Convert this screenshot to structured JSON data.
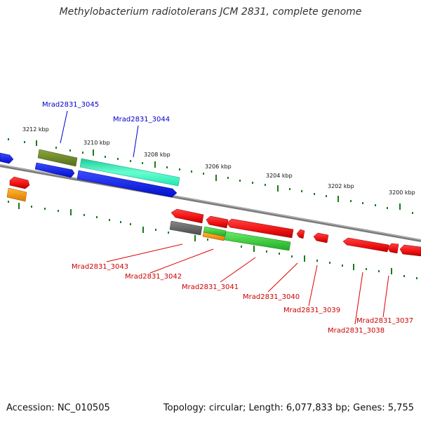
{
  "header": {
    "title": "Methylobacterium radiotolerans JCM 2831, complete genome"
  },
  "footer": {
    "accession": "Accession: NC_010505",
    "summary": "Topology: circular; Length: 6,077,833 bp; Genes: 5,755"
  },
  "scale": {
    "ticks": [
      "3212 kbp",
      "3210 kbp",
      "3208 kbp",
      "3206 kbp",
      "3204 kbp",
      "3202 kbp",
      "3200 kbp"
    ]
  },
  "labels": {
    "top": [
      "Mrad2831_3045",
      "Mrad2831_3044"
    ],
    "bottom": [
      "Mrad2831_3043",
      "Mrad2831_3042",
      "Mrad2831_3041",
      "Mrad2831_3040",
      "Mrad2831_3039",
      "Mrad2831_3038",
      "Mrad2831_3037"
    ]
  },
  "colors": {
    "backbone": "#888888",
    "forward_label": "#0000cc",
    "reverse_label": "#cc0000",
    "tick": "#1a7a1a",
    "blue": "#0a1cf0",
    "olive": "#6b8a2a",
    "aqua": "#33eebb",
    "red": "#ee1111",
    "orange": "#ff9900",
    "gray": "#666666",
    "green": "#33cc33"
  }
}
